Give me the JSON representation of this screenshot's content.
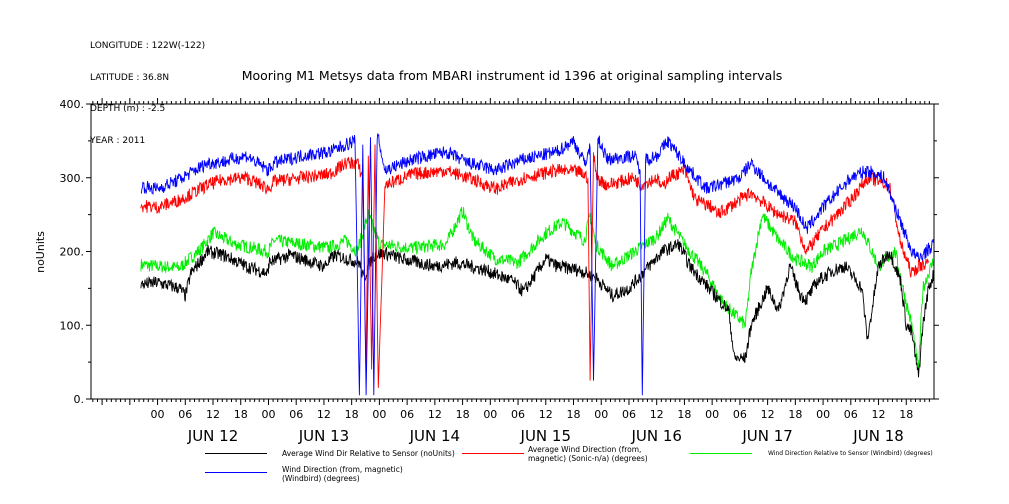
{
  "header": {
    "longitude": "LONGITUDE : 122W(-122)",
    "latitude": "LATITUDE : 36.8N",
    "depth": "DEPTH (m) : -2.5",
    "year": "YEAR : 2011"
  },
  "chart_data": {
    "type": "line",
    "title": "Mooring M1 Metsys data from MBARI instrument id 1396 at original sampling intervals",
    "ylabel": "noUnits",
    "ylim": [
      0,
      400
    ],
    "yticks": [
      0,
      100,
      200,
      300,
      400
    ],
    "ytick_labels": [
      "0.",
      "100.",
      "200.",
      "300.",
      "400."
    ],
    "xlim": [
      -0.6,
      7.0
    ],
    "x_unit": "days since JUN 12 00:00",
    "hour_tick_labels": [
      "00",
      "06",
      "12",
      "18",
      "00",
      "06",
      "12",
      "18",
      "00",
      "06",
      "12",
      "18",
      "00",
      "06",
      "12",
      "18",
      "00",
      "06",
      "12",
      "18",
      "00",
      "06",
      "12",
      "18",
      "00",
      "06",
      "12",
      "18"
    ],
    "day_labels": [
      "JUN 12",
      "JUN 13",
      "JUN 14",
      "JUN 15",
      "JUN 16",
      "JUN 17",
      "JUN 18"
    ],
    "series": [
      {
        "name": "Average Wind Dir Relative to Sensor (noUnits)",
        "color": "#000000",
        "points": [
          [
            -0.15,
            155
          ],
          [
            0.0,
            158
          ],
          [
            0.2,
            150
          ],
          [
            0.25,
            140
          ],
          [
            0.3,
            170
          ],
          [
            0.45,
            200
          ],
          [
            0.6,
            195
          ],
          [
            0.8,
            180
          ],
          [
            1.0,
            170
          ],
          [
            1.0,
            185
          ],
          [
            1.2,
            195
          ],
          [
            1.5,
            180
          ],
          [
            1.6,
            195
          ],
          [
            1.82,
            185
          ],
          [
            1.86,
            162
          ],
          [
            1.9,
            180
          ],
          [
            1.95,
            195
          ],
          [
            2.05,
            198
          ],
          [
            2.2,
            190
          ],
          [
            2.5,
            180
          ],
          [
            2.7,
            185
          ],
          [
            2.95,
            175
          ],
          [
            3.2,
            160
          ],
          [
            3.3,
            145
          ],
          [
            3.5,
            190
          ],
          [
            3.6,
            180
          ],
          [
            3.8,
            175
          ],
          [
            3.95,
            165
          ],
          [
            4.1,
            140
          ],
          [
            4.25,
            150
          ],
          [
            4.4,
            175
          ],
          [
            4.55,
            200
          ],
          [
            4.7,
            210
          ],
          [
            4.8,
            180
          ],
          [
            5.0,
            145
          ],
          [
            5.15,
            120
          ],
          [
            5.2,
            55
          ],
          [
            5.3,
            55
          ],
          [
            5.35,
            100
          ],
          [
            5.5,
            150
          ],
          [
            5.6,
            120
          ],
          [
            5.7,
            180
          ],
          [
            5.8,
            140
          ],
          [
            5.85,
            135
          ],
          [
            5.95,
            160
          ],
          [
            6.1,
            175
          ],
          [
            6.2,
            180
          ],
          [
            6.35,
            150
          ],
          [
            6.4,
            80
          ],
          [
            6.5,
            180
          ],
          [
            6.6,
            200
          ],
          [
            6.7,
            160
          ],
          [
            6.75,
            100
          ],
          [
            6.8,
            90
          ],
          [
            6.86,
            30
          ],
          [
            6.9,
            100
          ],
          [
            6.95,
            150
          ],
          [
            7.0,
            170
          ]
        ]
      },
      {
        "name": "Average Wind Direction (from, magnetic) (Sonic-n/a) (degrees)",
        "color": "#ff0000",
        "points": [
          [
            -0.15,
            262
          ],
          [
            0.0,
            260
          ],
          [
            0.2,
            270
          ],
          [
            0.45,
            290
          ],
          [
            0.6,
            298
          ],
          [
            0.8,
            300
          ],
          [
            1.0,
            285
          ],
          [
            1.05,
            295
          ],
          [
            1.3,
            300
          ],
          [
            1.55,
            305
          ],
          [
            1.7,
            320
          ],
          [
            1.8,
            320
          ],
          [
            1.85,
            300
          ],
          [
            1.88,
            30
          ],
          [
            1.9,
            330
          ],
          [
            1.93,
            40
          ],
          [
            1.96,
            345
          ],
          [
            1.99,
            15
          ],
          [
            2.05,
            290
          ],
          [
            2.3,
            305
          ],
          [
            2.6,
            310
          ],
          [
            2.8,
            300
          ],
          [
            3.05,
            285
          ],
          [
            3.3,
            300
          ],
          [
            3.6,
            310
          ],
          [
            3.8,
            308
          ],
          [
            3.88,
            300
          ],
          [
            3.9,
            25
          ],
          [
            3.93,
            330
          ],
          [
            3.96,
            300
          ],
          [
            4.05,
            290
          ],
          [
            4.3,
            300
          ],
          [
            4.35,
            290
          ],
          [
            4.5,
            300
          ],
          [
            4.55,
            285
          ],
          [
            4.6,
            300
          ],
          [
            4.75,
            310
          ],
          [
            4.85,
            270
          ],
          [
            5.0,
            260
          ],
          [
            5.05,
            250
          ],
          [
            5.2,
            265
          ],
          [
            5.35,
            280
          ],
          [
            5.55,
            255
          ],
          [
            5.75,
            240
          ],
          [
            5.85,
            200
          ],
          [
            6.0,
            230
          ],
          [
            6.25,
            270
          ],
          [
            6.4,
            300
          ],
          [
            6.6,
            290
          ],
          [
            6.7,
            210
          ],
          [
            6.8,
            170
          ],
          [
            6.86,
            180
          ],
          [
            6.95,
            185
          ]
        ]
      },
      {
        "name": "Wind Direction Relative to Sensor (Windbird) (degrees)",
        "color": "#00ee00",
        "points": [
          [
            -0.15,
            182
          ],
          [
            0.0,
            180
          ],
          [
            0.2,
            178
          ],
          [
            0.4,
            205
          ],
          [
            0.5,
            225
          ],
          [
            0.7,
            210
          ],
          [
            1.0,
            200
          ],
          [
            1.05,
            215
          ],
          [
            1.3,
            210
          ],
          [
            1.55,
            205
          ],
          [
            1.7,
            215
          ],
          [
            1.8,
            200
          ],
          [
            1.9,
            250
          ],
          [
            2.0,
            210
          ],
          [
            2.3,
            205
          ],
          [
            2.6,
            210
          ],
          [
            2.75,
            255
          ],
          [
            2.85,
            215
          ],
          [
            3.05,
            190
          ],
          [
            3.25,
            185
          ],
          [
            3.5,
            225
          ],
          [
            3.65,
            240
          ],
          [
            3.85,
            215
          ],
          [
            3.9,
            250
          ],
          [
            3.95,
            210
          ],
          [
            4.1,
            180
          ],
          [
            4.3,
            200
          ],
          [
            4.5,
            220
          ],
          [
            4.6,
            245
          ],
          [
            4.75,
            210
          ],
          [
            4.95,
            170
          ],
          [
            5.1,
            130
          ],
          [
            5.3,
            100
          ],
          [
            5.35,
            170
          ],
          [
            5.45,
            250
          ],
          [
            5.6,
            215
          ],
          [
            5.75,
            190
          ],
          [
            5.9,
            180
          ],
          [
            6.0,
            200
          ],
          [
            6.2,
            215
          ],
          [
            6.35,
            230
          ],
          [
            6.5,
            180
          ],
          [
            6.65,
            200
          ],
          [
            6.75,
            130
          ],
          [
            6.8,
            100
          ],
          [
            6.86,
            40
          ],
          [
            6.9,
            150
          ],
          [
            7.0,
            190
          ]
        ]
      },
      {
        "name": "Wind Direction (from, magnetic) (Windbird) (degrees)",
        "color": "#0000ff",
        "points": [
          [
            -0.15,
            288
          ],
          [
            0.0,
            285
          ],
          [
            0.2,
            298
          ],
          [
            0.45,
            320
          ],
          [
            0.6,
            322
          ],
          [
            0.8,
            330
          ],
          [
            1.0,
            310
          ],
          [
            1.05,
            320
          ],
          [
            1.3,
            330
          ],
          [
            1.55,
            335
          ],
          [
            1.7,
            345
          ],
          [
            1.78,
            350
          ],
          [
            1.82,
            5
          ],
          [
            1.85,
            345
          ],
          [
            1.88,
            5
          ],
          [
            1.92,
            355
          ],
          [
            1.95,
            5
          ],
          [
            1.98,
            360
          ],
          [
            2.05,
            310
          ],
          [
            2.3,
            325
          ],
          [
            2.6,
            335
          ],
          [
            2.8,
            320
          ],
          [
            3.05,
            310
          ],
          [
            3.3,
            325
          ],
          [
            3.6,
            335
          ],
          [
            3.75,
            350
          ],
          [
            3.85,
            320
          ],
          [
            3.9,
            340
          ],
          [
            3.93,
            25
          ],
          [
            3.97,
            355
          ],
          [
            4.05,
            325
          ],
          [
            4.3,
            330
          ],
          [
            4.35,
            310
          ],
          [
            4.37,
            5
          ],
          [
            4.4,
            325
          ],
          [
            4.5,
            330
          ],
          [
            4.6,
            350
          ],
          [
            4.7,
            330
          ],
          [
            4.8,
            310
          ],
          [
            4.95,
            285
          ],
          [
            5.15,
            295
          ],
          [
            5.25,
            300
          ],
          [
            5.35,
            320
          ],
          [
            5.55,
            285
          ],
          [
            5.75,
            260
          ],
          [
            5.85,
            230
          ],
          [
            6.0,
            260
          ],
          [
            6.25,
            300
          ],
          [
            6.4,
            310
          ],
          [
            6.55,
            300
          ],
          [
            6.7,
            240
          ],
          [
            6.8,
            200
          ],
          [
            6.86,
            190
          ],
          [
            7.0,
            210
          ]
        ]
      }
    ]
  }
}
